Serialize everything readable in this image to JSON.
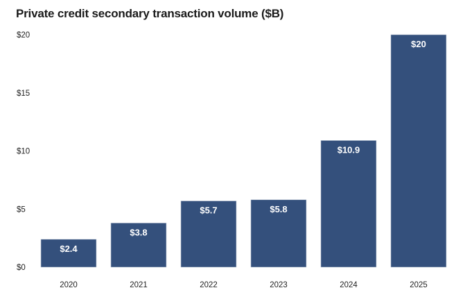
{
  "chart_data": {
    "type": "bar",
    "title": "Private credit secondary transaction volume ($B)",
    "xlabel": "",
    "ylabel": "",
    "categories": [
      "2020",
      "2021",
      "2022",
      "2023",
      "2024",
      "2025"
    ],
    "values": [
      2.4,
      3.8,
      5.7,
      5.8,
      10.9,
      20
    ],
    "data_labels": [
      "$2.4",
      "$3.8",
      "$5.7",
      "$5.8",
      "$10.9",
      "$20"
    ],
    "ylim": [
      0,
      20
    ],
    "yticks": [
      0,
      5,
      10,
      15,
      20
    ],
    "ytick_labels": [
      "$0",
      "$5",
      "$10",
      "$15",
      "$20"
    ],
    "grid": false,
    "legend": "none",
    "bar_color": "#34507c"
  }
}
